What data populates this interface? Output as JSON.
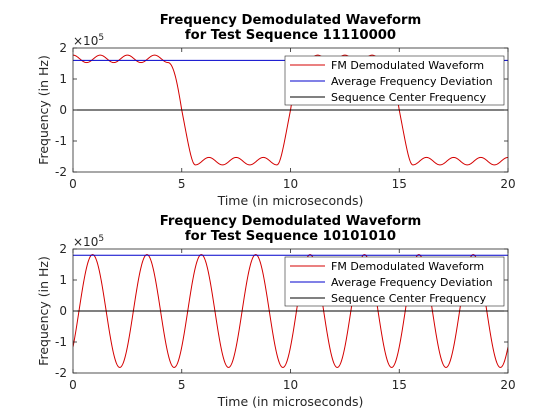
{
  "chart_data": [
    {
      "type": "line",
      "title_line1": "Frequency Demodulated Waveform",
      "title_line2": "for Test Sequence 11110000",
      "xlabel": "Time (in microseconds)",
      "ylabel": "Frequency (in Hz)",
      "xlim": [
        0,
        20
      ],
      "ylim": [
        -200000,
        200000
      ],
      "xticks": [
        0,
        5,
        10,
        15,
        20
      ],
      "xtick_labels": [
        "0",
        "5",
        "10",
        "15",
        "20"
      ],
      "yticks": [
        -200000,
        -100000,
        0,
        100000,
        200000
      ],
      "ytick_labels": [
        "-2",
        "-1",
        "0",
        "1",
        "2"
      ],
      "exponent_base": "×10",
      "exponent_power": "5",
      "grid": false,
      "legend_position": "top-right",
      "bit_period_us": 1.25,
      "bits": "1111000011110000",
      "ripple_amplitude": 12000,
      "ripple_period_us": 1.25,
      "series": [
        {
          "name": "FM Demodulated Waveform",
          "color": "#d40000",
          "kind": "fm",
          "amplitude": 165000
        },
        {
          "name": "Average Frequency Deviation",
          "color": "#0000cc",
          "kind": "hline",
          "value": 160000
        },
        {
          "name": "Sequence Center Frequency",
          "color": "#000000",
          "kind": "hline",
          "value": 0
        }
      ]
    },
    {
      "type": "line",
      "title_line1": "Frequency Demodulated Waveform",
      "title_line2": "for Test Sequence 10101010",
      "xlabel": "Time (in microseconds)",
      "ylabel": "Frequency (in Hz)",
      "xlim": [
        0,
        20
      ],
      "ylim": [
        -200000,
        200000
      ],
      "xticks": [
        0,
        5,
        10,
        15,
        20
      ],
      "xtick_labels": [
        "0",
        "5",
        "10",
        "15",
        "20"
      ],
      "yticks": [
        -200000,
        -100000,
        0,
        100000,
        200000
      ],
      "ytick_labels": [
        "-2",
        "-1",
        "0",
        "1",
        "2"
      ],
      "exponent_base": "×10",
      "exponent_power": "5",
      "grid": false,
      "legend_position": "top-right",
      "sine_period_us": 2.5,
      "sine_amplitude": 182000,
      "sine_peak_us": 0.9,
      "series": [
        {
          "name": "FM Demodulated Waveform",
          "color": "#d40000",
          "kind": "sine"
        },
        {
          "name": "Average Frequency Deviation",
          "color": "#0000cc",
          "kind": "hline",
          "value": 180000
        },
        {
          "name": "Sequence Center Frequency",
          "color": "#000000",
          "kind": "hline",
          "value": 0
        }
      ]
    }
  ]
}
